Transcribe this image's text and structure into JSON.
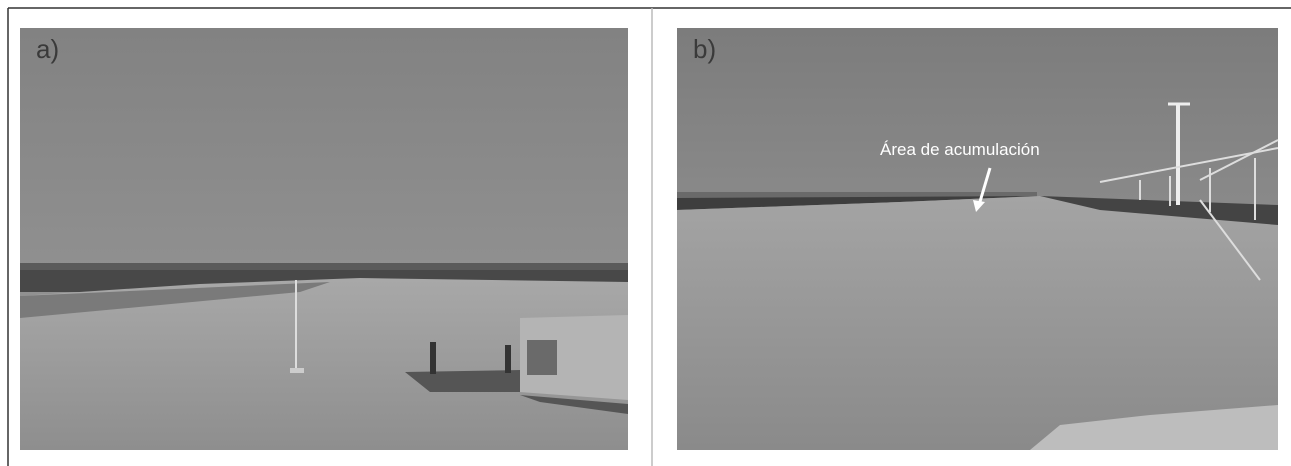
{
  "panels": [
    {
      "label": "a)"
    },
    {
      "label": "b)",
      "annotation": "Área de acumulación"
    }
  ]
}
